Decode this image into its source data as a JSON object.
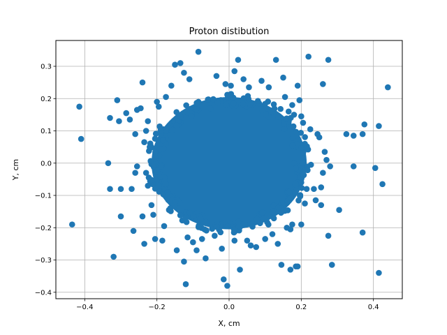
{
  "chart_data": {
    "type": "scatter",
    "title": "Proton distibution",
    "xlabel": "X, cm",
    "ylabel": "Y, cm",
    "xlim": [
      -0.48,
      0.48
    ],
    "ylim": [
      -0.42,
      0.38
    ],
    "x_ticks": [
      -0.4,
      -0.2,
      0.0,
      0.2,
      0.4
    ],
    "x_tick_labels": [
      "−0.4",
      "−0.2",
      "0.0",
      "0.2",
      "0.4"
    ],
    "y_ticks": [
      -0.4,
      -0.3,
      -0.2,
      -0.1,
      0.0,
      0.1,
      0.2,
      0.3
    ],
    "y_tick_labels": [
      "−0.4",
      "−0.3",
      "−0.2",
      "−0.1",
      "0.0",
      "0.1",
      "0.2",
      "0.3"
    ],
    "grid": true,
    "marker_color": "#1f77b4",
    "core_cluster": {
      "center": [
        0.0,
        0.0
      ],
      "x_extent": [
        -0.215,
        0.215
      ],
      "y_extent": [
        -0.205,
        0.205
      ]
    },
    "series": [
      {
        "points": [
          [
            -0.435,
            -0.19
          ],
          [
            -0.415,
            0.175
          ],
          [
            -0.41,
            0.075
          ],
          [
            -0.335,
            0.0
          ],
          [
            -0.33,
            -0.08
          ],
          [
            -0.33,
            0.14
          ],
          [
            -0.32,
            -0.29
          ],
          [
            -0.31,
            0.195
          ],
          [
            -0.305,
            0.13
          ],
          [
            -0.3,
            -0.08
          ],
          [
            -0.3,
            -0.165
          ],
          [
            -0.285,
            0.155
          ],
          [
            -0.275,
            0.135
          ],
          [
            -0.27,
            -0.08
          ],
          [
            -0.265,
            -0.21
          ],
          [
            -0.26,
            0.09
          ],
          [
            -0.26,
            -0.03
          ],
          [
            -0.255,
            0.165
          ],
          [
            -0.255,
            -0.01
          ],
          [
            -0.245,
            0.17
          ],
          [
            -0.24,
            0.25
          ],
          [
            -0.24,
            -0.165
          ],
          [
            -0.235,
            -0.25
          ],
          [
            -0.235,
            0.065
          ],
          [
            -0.23,
            -0.03
          ],
          [
            -0.225,
            0.13
          ],
          [
            -0.225,
            -0.07
          ],
          [
            -0.22,
            0.05
          ],
          [
            -0.215,
            -0.13
          ],
          [
            -0.205,
            -0.235
          ],
          [
            -0.195,
            0.175
          ],
          [
            -0.185,
            -0.24
          ],
          [
            -0.175,
            0.205
          ],
          [
            -0.16,
            0.24
          ],
          [
            -0.15,
            0.305
          ],
          [
            -0.145,
            -0.27
          ],
          [
            -0.135,
            0.31
          ],
          [
            -0.125,
            -0.305
          ],
          [
            -0.125,
            0.28
          ],
          [
            -0.12,
            -0.375
          ],
          [
            -0.115,
            -0.23
          ],
          [
            -0.11,
            0.26
          ],
          [
            -0.1,
            -0.245
          ],
          [
            -0.09,
            -0.27
          ],
          [
            -0.085,
            0.345
          ],
          [
            -0.075,
            -0.235
          ],
          [
            -0.065,
            -0.295
          ],
          [
            -0.04,
            -0.225
          ],
          [
            -0.035,
            0.27
          ],
          [
            -0.02,
            -0.265
          ],
          [
            -0.015,
            -0.36
          ],
          [
            -0.01,
            0.245
          ],
          [
            -0.005,
            -0.38
          ],
          [
            0.005,
            0.24
          ],
          [
            0.015,
            0.285
          ],
          [
            0.015,
            -0.24
          ],
          [
            0.025,
            0.32
          ],
          [
            0.03,
            -0.33
          ],
          [
            0.04,
            0.26
          ],
          [
            0.05,
            -0.24
          ],
          [
            0.055,
            0.235
          ],
          [
            0.06,
            -0.255
          ],
          [
            0.075,
            -0.26
          ],
          [
            0.09,
            0.255
          ],
          [
            0.1,
            -0.235
          ],
          [
            0.11,
            0.235
          ],
          [
            0.12,
            -0.22
          ],
          [
            0.13,
            0.32
          ],
          [
            0.135,
            -0.25
          ],
          [
            0.145,
            -0.315
          ],
          [
            0.15,
            0.265
          ],
          [
            0.155,
            0.205
          ],
          [
            0.16,
            -0.2
          ],
          [
            0.165,
            0.16
          ],
          [
            0.17,
            -0.33
          ],
          [
            0.175,
            -0.19
          ],
          [
            0.18,
            0.15
          ],
          [
            0.185,
            -0.32
          ],
          [
            0.19,
            0.24
          ],
          [
            0.19,
            -0.32
          ],
          [
            0.195,
            0.195
          ],
          [
            0.2,
            -0.19
          ],
          [
            0.2,
            0.145
          ],
          [
            0.205,
            0.125
          ],
          [
            0.21,
            -0.125
          ],
          [
            0.215,
            -0.08
          ],
          [
            0.22,
            0.33
          ],
          [
            0.225,
            0.105
          ],
          [
            0.235,
            -0.08
          ],
          [
            0.24,
            -0.115
          ],
          [
            0.245,
            0.09
          ],
          [
            0.25,
            0.08
          ],
          [
            0.255,
            -0.075
          ],
          [
            0.255,
            -0.13
          ],
          [
            0.26,
            0.245
          ],
          [
            0.26,
            -0.03
          ],
          [
            0.265,
            0.035
          ],
          [
            0.27,
            0.01
          ],
          [
            0.275,
            0.32
          ],
          [
            0.275,
            -0.225
          ],
          [
            0.28,
            -0.01
          ],
          [
            0.285,
            -0.315
          ],
          [
            0.305,
            -0.145
          ],
          [
            0.325,
            0.09
          ],
          [
            0.345,
            0.085
          ],
          [
            0.345,
            -0.01
          ],
          [
            0.37,
            0.09
          ],
          [
            0.37,
            -0.215
          ],
          [
            0.375,
            0.12
          ],
          [
            0.405,
            -0.015
          ],
          [
            0.415,
            0.115
          ],
          [
            0.415,
            -0.34
          ],
          [
            0.425,
            -0.065
          ],
          [
            0.44,
            0.235
          ],
          [
            0.18,
            0.0
          ],
          [
            -0.2,
            0.19
          ],
          [
            -0.21,
            -0.16
          ],
          [
            0.17,
            -0.205
          ],
          [
            0.175,
            0.18
          ],
          [
            -0.18,
            -0.195
          ],
          [
            -0.19,
            0.1
          ],
          [
            -0.205,
            0.02
          ],
          [
            0.21,
            0.06
          ],
          [
            0.2,
            -0.06
          ],
          [
            -0.23,
            0.1
          ]
        ]
      }
    ]
  }
}
